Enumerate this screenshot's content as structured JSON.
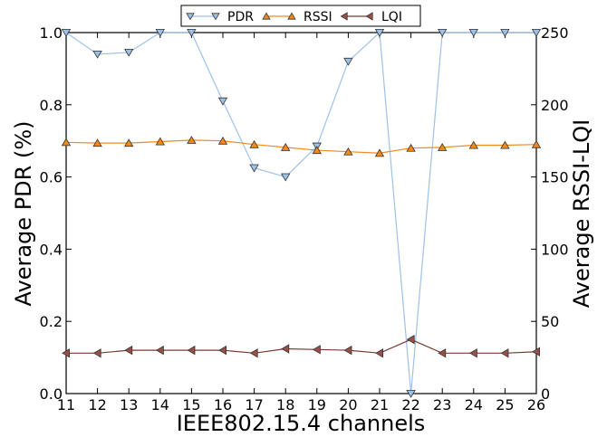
{
  "chart_data": {
    "type": "line",
    "x": [
      11,
      12,
      13,
      14,
      15,
      16,
      17,
      18,
      19,
      20,
      21,
      22,
      23,
      24,
      25,
      26
    ],
    "xlabel": "IEEE802.15.4 channels",
    "ylabel_left": "Average PDR (%)",
    "ylabel_right": "Average RSSI-LQI",
    "xlim": [
      11,
      26
    ],
    "ylim_left": [
      0,
      1
    ],
    "ylim_right": [
      0,
      250
    ],
    "xticks": [
      "11",
      "12",
      "13",
      "14",
      "15",
      "16",
      "17",
      "18",
      "19",
      "20",
      "21",
      "22",
      "23",
      "24",
      "25",
      "26"
    ],
    "yticks_left": [
      "0.0",
      "0.2",
      "0.4",
      "0.6",
      "0.8",
      "1.0"
    ],
    "yticks_right": [
      "0",
      "50",
      "100",
      "150",
      "200",
      "250"
    ],
    "grid": false,
    "legend_position": "top-center",
    "series": [
      {
        "name": "PDR",
        "axis": "left",
        "marker": "triangle-down",
        "color": "#9ec1e8",
        "marker_fill": "#9ec1e8",
        "values": [
          1.0,
          0.94,
          0.945,
          1.0,
          1.0,
          0.81,
          0.625,
          0.6,
          0.685,
          0.92,
          1.0,
          0.0,
          1.0,
          1.0,
          1.0,
          1.0
        ]
      },
      {
        "name": "RSSI",
        "axis": "right",
        "marker": "triangle-up",
        "color": "#f08a1c",
        "marker_fill": "#f08a1c",
        "values": [
          174,
          173.5,
          173.5,
          174.5,
          175.5,
          175,
          172.5,
          170.5,
          168.5,
          167.5,
          166.5,
          170,
          170.5,
          172,
          172,
          172.5
        ]
      },
      {
        "name": "LQI",
        "axis": "right",
        "marker": "triangle-left",
        "color": "#7a3a30",
        "marker_fill": "#9a5047",
        "values": [
          28,
          28,
          30,
          30,
          30,
          30,
          28,
          31,
          30.5,
          30,
          28,
          37.5,
          28,
          28,
          28,
          29
        ]
      }
    ]
  }
}
